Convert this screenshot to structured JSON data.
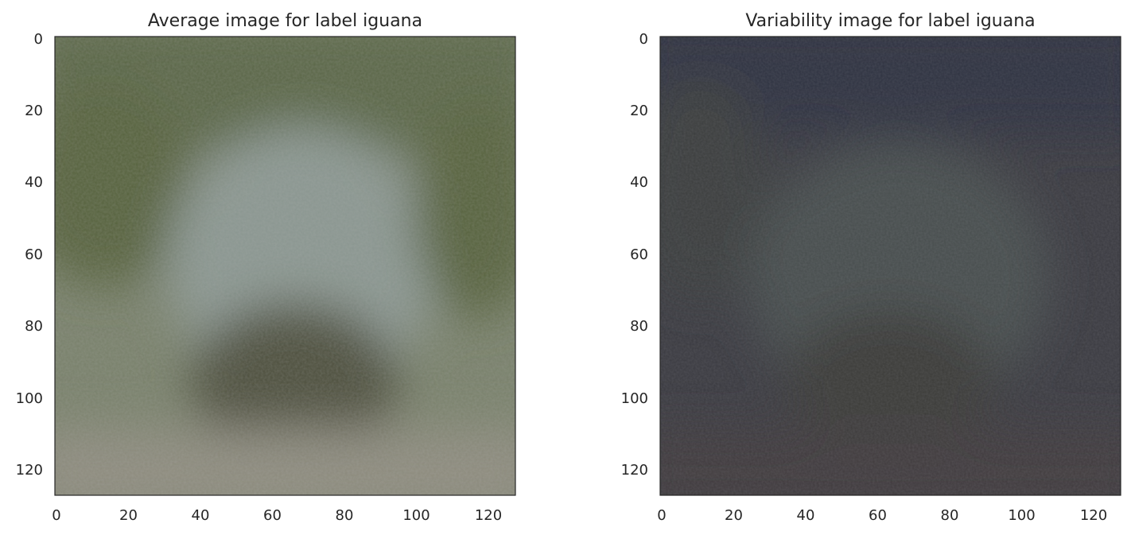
{
  "chart_data": [
    {
      "type": "heatmap",
      "title": "Average image for label iguana",
      "xlabel": "",
      "ylabel": "",
      "xlim": [
        0,
        127
      ],
      "ylim": [
        127,
        0
      ],
      "x_ticks": [
        "0",
        "20",
        "40",
        "60",
        "80",
        "100",
        "120"
      ],
      "y_ticks": [
        "0",
        "20",
        "40",
        "60",
        "80",
        "100",
        "120"
      ],
      "grid": false,
      "colors": {
        "top": "#5a6646",
        "upper_left": "#56623e",
        "center": "#8a9690",
        "center_dark": "#4e4f3e",
        "lower": "#8d8b7e",
        "edges": "#78806a"
      }
    },
    {
      "type": "heatmap",
      "title": "Variability image for label iguana",
      "xlabel": "",
      "ylabel": "",
      "xlim": [
        0,
        127
      ],
      "ylim": [
        127,
        0
      ],
      "x_ticks": [
        "0",
        "20",
        "40",
        "60",
        "80",
        "100",
        "120"
      ],
      "y_ticks": [
        "0",
        "20",
        "40",
        "60",
        "80",
        "100",
        "120"
      ],
      "grid": false,
      "colors": {
        "top": "#2f3340",
        "upper_left": "#3a3d3c",
        "center": "#474d4e",
        "center_dark": "#3b3a38",
        "lower": "#3f3b3c",
        "edges": "#3a3a40"
      }
    }
  ]
}
